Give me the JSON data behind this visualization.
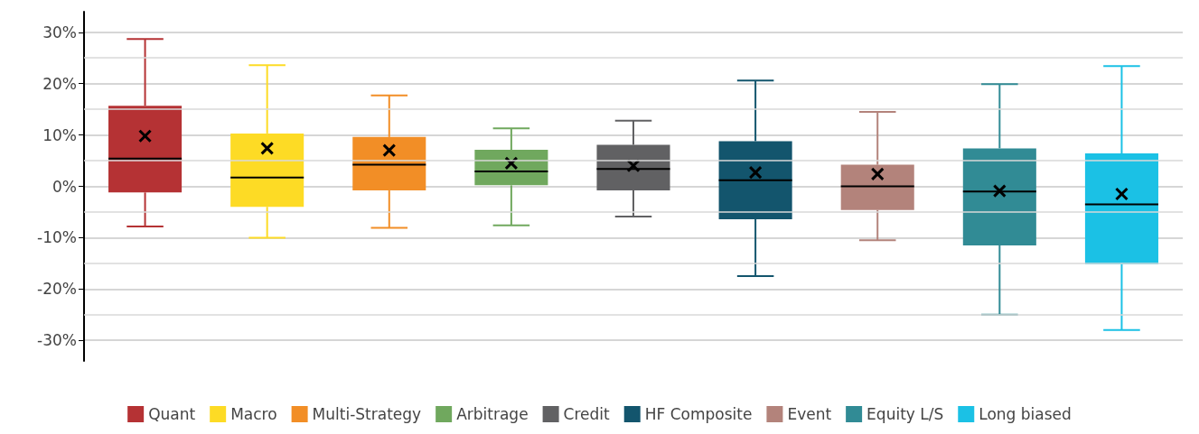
{
  "chart_data": {
    "type": "box",
    "categories": [
      null,
      null,
      null,
      null,
      null,
      null,
      null,
      null,
      null
    ],
    "ylim": [
      -34,
      34
    ],
    "yticks": [
      {
        "value": -30,
        "label": "-30%"
      },
      {
        "value": -25,
        "label": null
      },
      {
        "value": -20,
        "label": "-20%"
      },
      {
        "value": -15,
        "label": null
      },
      {
        "value": -10,
        "label": "-10%"
      },
      {
        "value": -5,
        "label": null
      },
      {
        "value": 0,
        "label": "0%"
      },
      {
        "value": 5,
        "label": null
      },
      {
        "value": 10,
        "label": "10%"
      },
      {
        "value": 15,
        "label": null
      },
      {
        "value": 20,
        "label": "20%"
      },
      {
        "value": 25,
        "label": null
      },
      {
        "value": 30,
        "label": "30%"
      }
    ],
    "grid": "y",
    "legend": "bottom",
    "marker": "cross",
    "series": [
      {
        "name": "Quant",
        "color": "#b53234",
        "boxes": [
          {
            "low": -7.8,
            "q1": -1.2,
            "median": 5.4,
            "q3": 15.7,
            "high": 28.7,
            "mean": 9.8
          },
          null,
          null,
          null,
          null,
          null,
          null,
          null,
          null
        ]
      },
      {
        "name": "Macro",
        "color": "#fddb25",
        "boxes": [
          null,
          {
            "low": -10.0,
            "q1": -4.0,
            "median": 1.7,
            "q3": 10.3,
            "high": 23.6,
            "mean": 7.4
          },
          null,
          null,
          null,
          null,
          null,
          null,
          null
        ]
      },
      {
        "name": "Multi-Strategy",
        "color": "#f28e26",
        "boxes": [
          null,
          null,
          {
            "low": -8.1,
            "q1": -0.8,
            "median": 4.2,
            "q3": 9.6,
            "high": 17.7,
            "mean": 7.0
          },
          null,
          null,
          null,
          null,
          null,
          null
        ]
      },
      {
        "name": "Arbitrage",
        "color": "#70a85e",
        "boxes": [
          null,
          null,
          null,
          {
            "low": -7.6,
            "q1": 0.2,
            "median": 2.9,
            "q3": 7.1,
            "high": 11.3,
            "mean": 4.5
          },
          null,
          null,
          null,
          null,
          null
        ]
      },
      {
        "name": "Credit",
        "color": "#616163",
        "boxes": [
          null,
          null,
          null,
          null,
          {
            "low": -5.9,
            "q1": -0.8,
            "median": 3.4,
            "q3": 8.1,
            "high": 12.8,
            "mean": 4.0
          },
          null,
          null,
          null,
          null
        ]
      },
      {
        "name": "HF Composite",
        "color": "#13556d",
        "boxes": [
          null,
          null,
          null,
          null,
          null,
          {
            "low": -17.5,
            "q1": -6.4,
            "median": 1.2,
            "q3": 8.8,
            "high": 20.6,
            "mean": 2.7
          },
          null,
          null,
          null
        ]
      },
      {
        "name": "Event",
        "color": "#b3837b",
        "boxes": [
          null,
          null,
          null,
          null,
          null,
          null,
          {
            "low": -10.5,
            "q1": -4.6,
            "median": 0.0,
            "q3": 4.2,
            "high": 14.5,
            "mean": 2.4
          },
          null,
          null
        ]
      },
      {
        "name": "Equity L/S",
        "color": "#318b95",
        "boxes": [
          null,
          null,
          null,
          null,
          null,
          null,
          null,
          {
            "low": -25.0,
            "q1": -11.5,
            "median": -1.0,
            "q3": 7.4,
            "high": 19.9,
            "mean": -0.9
          },
          null
        ]
      },
      {
        "name": "Long biased",
        "color": "#1bc1e5",
        "boxes": [
          null,
          null,
          null,
          null,
          null,
          null,
          null,
          null,
          {
            "low": -28.0,
            "q1": -15.2,
            "median": -3.5,
            "q3": 6.4,
            "high": 23.4,
            "mean": -1.5
          }
        ]
      }
    ]
  }
}
